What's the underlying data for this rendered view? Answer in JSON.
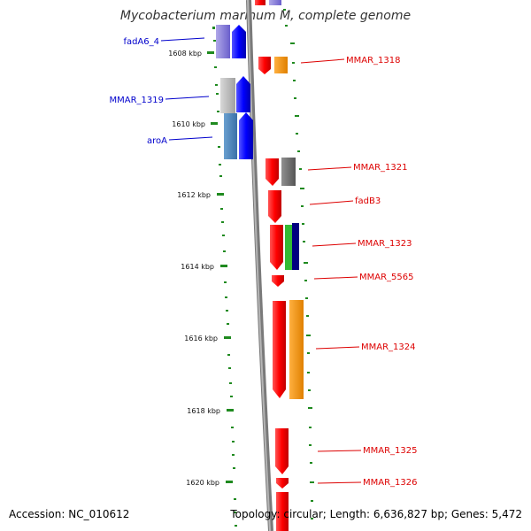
{
  "title": "Mycobacterium marinum M, complete genome",
  "footer": {
    "accession": "Accession: NC_010612",
    "summary": "Topology: circular; Length: 6,636,827 bp; Genes: 5,472"
  },
  "ruler": [
    {
      "label": "1608 kbp"
    },
    {
      "label": "1610 kbp"
    },
    {
      "label": "1612 kbp"
    },
    {
      "label": "1614 kbp"
    },
    {
      "label": "1616 kbp"
    },
    {
      "label": "1618 kbp"
    },
    {
      "label": "1620 kbp"
    }
  ],
  "genes_left": [
    {
      "name": "fadA6_4",
      "color": "#0000cc"
    },
    {
      "name": "MMAR_1319",
      "color": "#0000cc"
    },
    {
      "name": "aroA",
      "color": "#0000cc"
    }
  ],
  "genes_right": [
    {
      "name": "MMAR_1318",
      "color": "#dd0000"
    },
    {
      "name": "MMAR_1321",
      "color": "#dd0000"
    },
    {
      "name": "fadB3",
      "color": "#dd0000"
    },
    {
      "name": "MMAR_1323",
      "color": "#dd0000"
    },
    {
      "name": "MMAR_5565",
      "color": "#dd0000"
    },
    {
      "name": "MMAR_1324",
      "color": "#dd0000"
    },
    {
      "name": "MMAR_1325",
      "color": "#dd0000"
    },
    {
      "name": "MMAR_1326",
      "color": "#dd0000"
    }
  ],
  "colors": {
    "backbone": "#888888",
    "tick": "#1f8a1f",
    "forward": "#ff0000",
    "reverse": "#0000ff"
  }
}
